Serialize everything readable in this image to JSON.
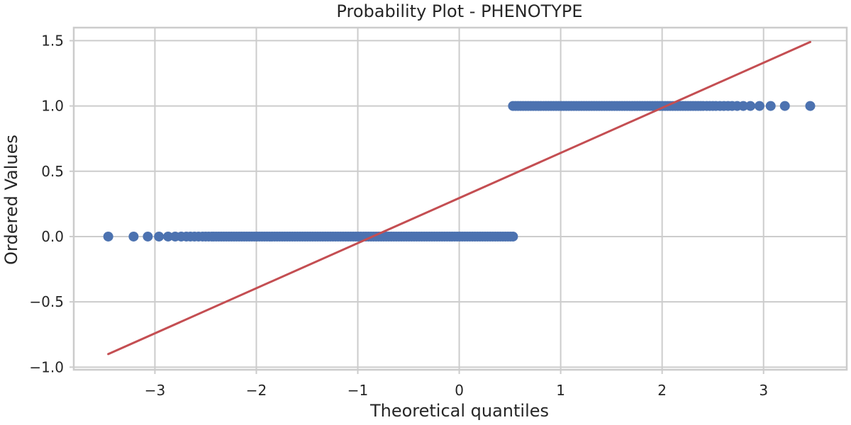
{
  "chart_data": {
    "type": "scatter",
    "title": "Probability Plot - PHENOTYPE",
    "xlabel": "Theoretical quantiles",
    "ylabel": "Ordered Values",
    "xlim": [
      -3.8,
      3.82
    ],
    "ylim": [
      -1.02,
      1.6
    ],
    "xticks": [
      -3,
      -2,
      -1,
      0,
      1,
      2,
      3
    ],
    "xtick_labels": [
      "−3",
      "−2",
      "−1",
      "0",
      "1",
      "2",
      "3"
    ],
    "yticks": [
      -1.0,
      -0.5,
      0.0,
      0.5,
      1.0,
      1.5
    ],
    "ytick_labels": [
      "−1.0",
      "−0.5",
      "0.0",
      "0.5",
      "1.0",
      "1.5"
    ],
    "grid": true,
    "colors": {
      "points": "#4c72b0",
      "fit_line": "#c44e52",
      "grid": "#cccccc"
    },
    "series": [
      {
        "type": "scatter",
        "groups": [
          {
            "y": 0.0,
            "x_outliers": [
              -3.46,
              -3.21,
              -3.07,
              -2.96,
              -2.87,
              -2.8,
              -2.74,
              -2.69,
              -2.65,
              -2.61,
              -2.57,
              -2.53,
              -2.5,
              -2.47,
              -2.44
            ],
            "x_dense_range": [
              -2.42,
              0.54
            ]
          },
          {
            "y": 1.0,
            "x_outliers": [
              3.46,
              3.21,
              3.07,
              2.96,
              2.87,
              2.8,
              2.74,
              2.69,
              2.65,
              2.61,
              2.57,
              2.53,
              2.5,
              2.47,
              2.44
            ],
            "x_dense_range": [
              0.53,
              2.42
            ]
          }
        ]
      },
      {
        "type": "line",
        "x": [
          -3.46,
          3.46
        ],
        "y": [
          -0.9,
          1.49
        ]
      }
    ]
  }
}
